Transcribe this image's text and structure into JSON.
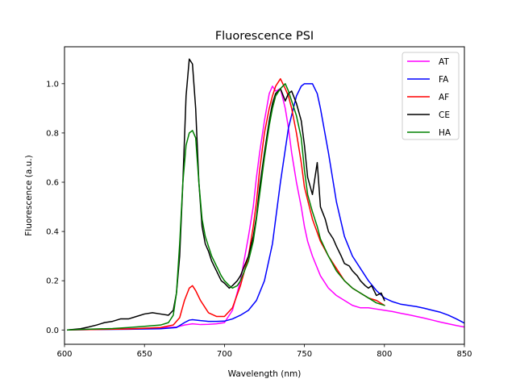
{
  "chart_data": {
    "type": "line",
    "title": "Fluorescence PSI",
    "xlabel": "Wavelength (nm)",
    "ylabel": "Fluorescence (a.u.)",
    "xlim": [
      600,
      850
    ],
    "ylim": [
      -0.058,
      1.15
    ],
    "xticks": [
      600,
      650,
      700,
      750,
      800,
      850
    ],
    "yticks": [
      0.0,
      0.2,
      0.4,
      0.6,
      0.8,
      1.0
    ],
    "xtick_labels": [
      "600",
      "650",
      "700",
      "750",
      "800",
      "850"
    ],
    "ytick_labels": [
      "0.0",
      "0.2",
      "0.4",
      "0.6",
      "0.8",
      "1.0"
    ],
    "grid": false,
    "legend_position": "top-right",
    "series": [
      {
        "name": "AT",
        "color": "#ff00ff",
        "x": [
          602,
          610,
          620,
          630,
          640,
          650,
          655,
          660,
          665,
          670,
          675,
          680,
          685,
          690,
          695,
          700,
          705,
          710,
          715,
          718,
          720,
          722,
          725,
          728,
          730,
          732,
          735,
          738,
          740,
          742,
          745,
          748,
          750,
          752,
          755,
          760,
          765,
          770,
          775,
          780,
          785,
          790,
          795,
          800,
          805,
          810,
          815,
          820,
          825,
          830,
          835,
          840,
          845,
          850
        ],
        "y": [
          0.0,
          0.002,
          0.003,
          0.004,
          0.005,
          0.006,
          0.007,
          0.008,
          0.01,
          0.012,
          0.02,
          0.025,
          0.022,
          0.023,
          0.025,
          0.03,
          0.08,
          0.2,
          0.38,
          0.5,
          0.62,
          0.72,
          0.85,
          0.96,
          0.99,
          0.97,
          0.98,
          0.9,
          0.82,
          0.72,
          0.6,
          0.5,
          0.42,
          0.36,
          0.3,
          0.22,
          0.17,
          0.14,
          0.12,
          0.1,
          0.09,
          0.09,
          0.085,
          0.08,
          0.075,
          0.068,
          0.062,
          0.055,
          0.048,
          0.04,
          0.032,
          0.025,
          0.018,
          0.012
        ]
      },
      {
        "name": "FA",
        "color": "#0000ff",
        "x": [
          602,
          620,
          640,
          660,
          670,
          675,
          678,
          680,
          685,
          690,
          695,
          700,
          705,
          710,
          715,
          720,
          725,
          730,
          735,
          740,
          745,
          748,
          750,
          752,
          755,
          758,
          760,
          765,
          770,
          775,
          780,
          785,
          790,
          795,
          800,
          805,
          810,
          815,
          820,
          825,
          830,
          835,
          840,
          845,
          850
        ],
        "y": [
          0.0,
          0.002,
          0.003,
          0.005,
          0.01,
          0.03,
          0.04,
          0.042,
          0.038,
          0.035,
          0.035,
          0.036,
          0.045,
          0.06,
          0.08,
          0.12,
          0.2,
          0.35,
          0.6,
          0.82,
          0.95,
          0.99,
          1.0,
          1.0,
          1.0,
          0.96,
          0.9,
          0.72,
          0.52,
          0.38,
          0.3,
          0.25,
          0.2,
          0.16,
          0.13,
          0.115,
          0.105,
          0.1,
          0.095,
          0.088,
          0.08,
          0.072,
          0.06,
          0.045,
          0.028
        ]
      },
      {
        "name": "AF",
        "color": "#ff0000",
        "x": [
          602,
          620,
          640,
          660,
          668,
          672,
          675,
          678,
          680,
          682,
          685,
          688,
          690,
          695,
          700,
          705,
          710,
          715,
          718,
          720,
          722,
          725,
          728,
          730,
          732,
          735,
          738,
          740,
          742,
          745,
          748,
          750,
          755,
          760,
          765,
          770,
          775,
          780,
          785,
          790,
          795,
          800
        ],
        "y": [
          0.0,
          0.002,
          0.004,
          0.01,
          0.02,
          0.05,
          0.12,
          0.17,
          0.18,
          0.16,
          0.12,
          0.09,
          0.07,
          0.055,
          0.055,
          0.09,
          0.18,
          0.3,
          0.42,
          0.52,
          0.65,
          0.8,
          0.9,
          0.95,
          0.99,
          1.02,
          0.98,
          0.95,
          0.9,
          0.8,
          0.68,
          0.58,
          0.45,
          0.36,
          0.3,
          0.25,
          0.2,
          0.17,
          0.15,
          0.13,
          0.12,
          0.1
        ]
      },
      {
        "name": "CE",
        "color": "#000000",
        "x": [
          602,
          610,
          615,
          620,
          625,
          630,
          635,
          640,
          645,
          650,
          655,
          660,
          665,
          668,
          670,
          672,
          674,
          676,
          678,
          680,
          682,
          684,
          686,
          688,
          690,
          692,
          695,
          698,
          700,
          703,
          705,
          708,
          710,
          715,
          718,
          720,
          722,
          725,
          728,
          730,
          732,
          735,
          738,
          740,
          742,
          745,
          748,
          750,
          752,
          755,
          758,
          760,
          763,
          765,
          768,
          770,
          773,
          775,
          778,
          780,
          783,
          785,
          788,
          790,
          792,
          795,
          798,
          800
        ],
        "y": [
          0.0,
          0.005,
          0.012,
          0.02,
          0.03,
          0.035,
          0.045,
          0.045,
          0.055,
          0.065,
          0.07,
          0.065,
          0.06,
          0.08,
          0.15,
          0.3,
          0.6,
          0.95,
          1.1,
          1.08,
          0.9,
          0.6,
          0.42,
          0.35,
          0.32,
          0.28,
          0.24,
          0.2,
          0.19,
          0.17,
          0.18,
          0.2,
          0.22,
          0.3,
          0.38,
          0.46,
          0.58,
          0.72,
          0.85,
          0.92,
          0.96,
          0.98,
          0.93,
          0.96,
          0.97,
          0.92,
          0.85,
          0.75,
          0.62,
          0.55,
          0.68,
          0.5,
          0.45,
          0.4,
          0.37,
          0.34,
          0.3,
          0.27,
          0.26,
          0.24,
          0.22,
          0.2,
          0.18,
          0.17,
          0.18,
          0.14,
          0.15,
          0.12
        ]
      },
      {
        "name": "HA",
        "color": "#008000",
        "x": [
          602,
          610,
          620,
          630,
          640,
          650,
          660,
          665,
          668,
          670,
          672,
          674,
          676,
          678,
          680,
          682,
          684,
          686,
          688,
          690,
          692,
          695,
          698,
          700,
          703,
          705,
          708,
          710,
          715,
          718,
          720,
          722,
          725,
          728,
          730,
          732,
          735,
          738,
          740,
          742,
          745,
          748,
          750,
          752,
          755,
          758,
          760,
          765,
          770,
          775,
          780,
          785,
          790,
          795,
          800
        ],
        "y": [
          0.0,
          0.002,
          0.004,
          0.006,
          0.01,
          0.015,
          0.02,
          0.03,
          0.06,
          0.15,
          0.35,
          0.6,
          0.75,
          0.8,
          0.81,
          0.78,
          0.6,
          0.45,
          0.38,
          0.34,
          0.3,
          0.26,
          0.22,
          0.2,
          0.18,
          0.17,
          0.18,
          0.2,
          0.28,
          0.36,
          0.45,
          0.55,
          0.7,
          0.83,
          0.9,
          0.95,
          0.98,
          1.0,
          0.97,
          0.93,
          0.87,
          0.78,
          0.65,
          0.55,
          0.48,
          0.42,
          0.37,
          0.3,
          0.24,
          0.2,
          0.17,
          0.15,
          0.13,
          0.11,
          0.1
        ]
      }
    ]
  }
}
